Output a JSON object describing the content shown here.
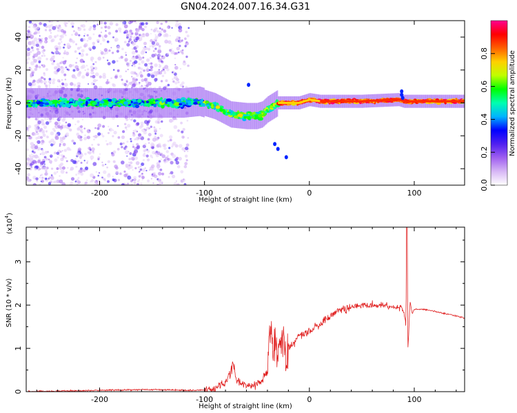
{
  "title": "GN04.2024.007.16.34.G31",
  "chart_data": [
    {
      "type": "heatmap",
      "xlabel": "Height of straight line (km)",
      "ylabel": "Frequency (Hz)",
      "xlim": [
        -270,
        148
      ],
      "ylim": [
        -50,
        50
      ],
      "xticks": [
        -200,
        -100,
        0,
        100
      ],
      "yticks": [
        -40,
        -20,
        0,
        20,
        40
      ],
      "colorbar": {
        "label": "Normalized spectral amplitude",
        "range": [
          0,
          1
        ],
        "ticks": [
          "0.0",
          "0.2",
          "0.4",
          "0.6",
          "0.8"
        ],
        "colormap": [
          "#ffffff",
          "#d7b7f5",
          "#a060f0",
          "#5020f0",
          "#0000ff",
          "#00b4ff",
          "#00ffb0",
          "#00ff00",
          "#c0ff00",
          "#ffd000",
          "#ff6000",
          "#ff0000",
          "#ff0090"
        ]
      },
      "ridge": {
        "x": [
          -270,
          -200,
          -120,
          -105,
          -90,
          -75,
          -60,
          -50,
          -45,
          -40,
          -35,
          -30,
          -20,
          -10,
          0,
          10,
          20,
          50,
          85,
          90,
          95,
          148
        ],
        "y": [
          0,
          0,
          0,
          1,
          -2,
          -7,
          -8,
          -8,
          -7,
          -4,
          -2,
          0,
          0,
          0,
          2,
          1,
          1,
          1,
          2,
          1,
          1,
          1
        ]
      }
    },
    {
      "type": "line",
      "xlabel": "Height of straight line (km)",
      "ylabel": "SNR (10 * v/v)",
      "scale_label": "(x10",
      "scale_exponent": "4",
      "xlim": [
        -270,
        148
      ],
      "ylim": [
        0,
        3.8
      ],
      "xticks": [
        -200,
        -100,
        0,
        100
      ],
      "yticks": [
        0,
        1,
        2,
        3
      ],
      "color": "#e02020",
      "series": [
        {
          "x": [
            -270,
            -250,
            -200,
            -150,
            -110,
            -100,
            -90,
            -80,
            -75,
            -72,
            -70,
            -65,
            -60,
            -55,
            -50,
            -45,
            -40,
            -38,
            -35,
            -30,
            -25,
            -22,
            -20,
            -15,
            -10,
            -5,
            0,
            5,
            10,
            15,
            20,
            25,
            30,
            40,
            50,
            60,
            70,
            80,
            88,
            92,
            93,
            94,
            95,
            96,
            98,
            100,
            110,
            120,
            130,
            140,
            148
          ],
          "y": [
            0.0,
            0.01,
            0.03,
            0.05,
            0.03,
            0.04,
            0.08,
            0.2,
            0.45,
            0.65,
            0.3,
            0.2,
            0.12,
            0.15,
            0.18,
            0.25,
            0.45,
            1.4,
            1.2,
            0.9,
            1.3,
            0.6,
            1.0,
            1.1,
            1.3,
            1.3,
            1.4,
            1.5,
            1.55,
            1.65,
            1.75,
            1.85,
            1.9,
            1.95,
            2.0,
            2.0,
            2.0,
            1.95,
            1.95,
            1.6,
            3.8,
            1.0,
            1.5,
            2.1,
            1.8,
            1.9,
            1.9,
            1.85,
            1.8,
            1.75,
            1.7
          ]
        }
      ]
    }
  ]
}
